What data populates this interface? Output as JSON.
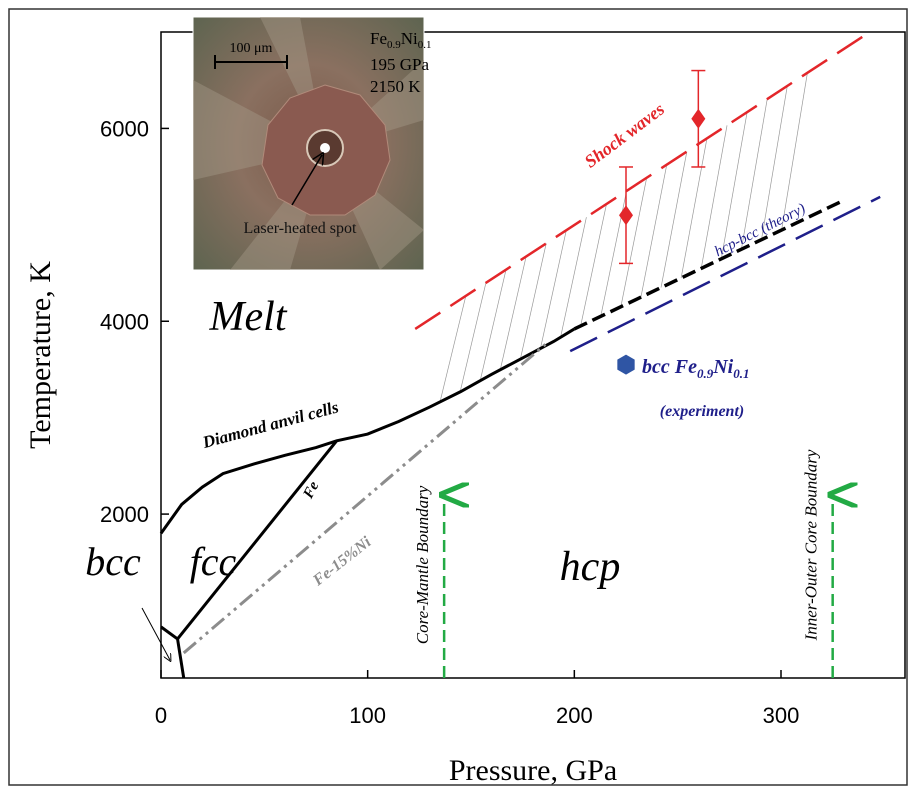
{
  "chart_data": {
    "type": "line",
    "xlabel": "Pressure, GPa",
    "ylabel": "Temperature, K",
    "xlim": [
      0,
      360
    ],
    "ylim": [
      300,
      7000
    ],
    "xticks": [
      0,
      100,
      200,
      300
    ],
    "yticks": [
      2000,
      4000,
      6000
    ],
    "series": [
      {
        "color": "#000000",
        "style": "solid",
        "x": [
          0,
          10,
          20,
          30,
          45,
          60,
          75,
          85,
          100,
          115,
          130,
          145,
          160,
          175,
          190,
          200
        ],
        "values": [
          1800,
          2100,
          2280,
          2420,
          2520,
          2610,
          2690,
          2760,
          2830,
          2960,
          3110,
          3270,
          3450,
          3620,
          3790,
          3920
        ]
      },
      {
        "color": "#000000",
        "style": "dashed",
        "x": [
          200,
          330
        ],
        "values": [
          3920,
          5250
        ]
      },
      {
        "color": "#000000",
        "style": "solid",
        "x": [
          8,
          85
        ],
        "values": [
          705,
          2760
        ]
      },
      {
        "color": "#000000",
        "style": "solid",
        "x": [
          0,
          8,
          11
        ],
        "values": [
          830,
          705,
          300
        ]
      },
      {
        "color": "#8c8c8c",
        "style": "dashdot",
        "x": [
          11,
          186
        ],
        "values": [
          560,
          3760
        ]
      },
      {
        "color": "#e3262a",
        "style": "longdash",
        "x": [
          123,
          343
        ],
        "values": [
          3920,
          7000
        ]
      },
      {
        "color": "#1f1f8a",
        "style": "longdash",
        "x": [
          198,
          348
        ],
        "values": [
          3690,
          5290
        ]
      }
    ],
    "hatch_xlim": [
      135,
      310
    ],
    "shock_points": {
      "color": "#e3262a",
      "x": [
        225,
        260
      ],
      "values": [
        5100,
        6100
      ],
      "errors": [
        500,
        500
      ]
    },
    "experiment_point": {
      "color": "#2f55a4",
      "x": [
        225
      ],
      "values": [
        3550
      ]
    },
    "experiment_label": [
      "bcc Fe",
      "0.9",
      "Ni",
      "0.1"
    ],
    "annotations": [
      "Melt",
      "fcc",
      "bcc",
      "hcp",
      "Fe",
      "Fe-15%Ni",
      "Diamond anvil cells",
      "Shock waves",
      "hcp-bcc (theory)",
      "(experiment)"
    ],
    "boundaries": [
      {
        "label": "Core-Mantle Boundary",
        "x": 137,
        "top": 2200,
        "color": "#22aa44"
      },
      {
        "label": "Inner-Outer Core Boundary",
        "x": 325,
        "top": 2200,
        "color": "#22aa44"
      }
    ],
    "inset": {
      "scale_bar": "100 μm",
      "sample": [
        "Fe",
        "0.9",
        "Ni",
        "0.1"
      ],
      "pressure": "195 GPa",
      "temperature": "2150 K",
      "spot": "Laser-heated spot"
    }
  }
}
